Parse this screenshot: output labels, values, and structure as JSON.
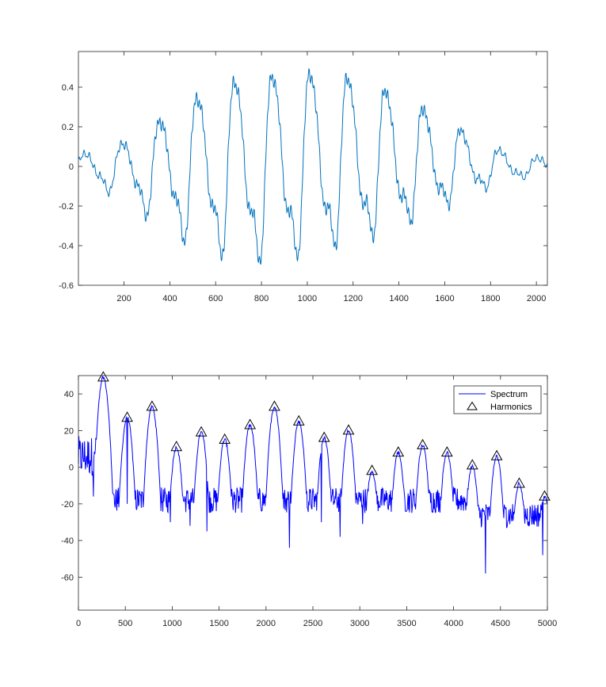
{
  "chart_data": [
    {
      "type": "line",
      "title": "",
      "xlabel": "",
      "ylabel": "",
      "xlim": [
        1,
        2048
      ],
      "ylim": [
        -0.6,
        0.58
      ],
      "xticks": [
        200,
        400,
        600,
        800,
        1000,
        1200,
        1400,
        1600,
        1800,
        2000
      ],
      "yticks": [
        -0.6,
        -0.4,
        -0.2,
        0,
        0.2,
        0.4
      ],
      "ytick_labels": [
        "-0.6",
        "-0.4",
        "-0.2",
        "0",
        "0.2",
        "0.4"
      ],
      "grid": false,
      "color": "#0072BD",
      "series": [
        {
          "samples": 2048,
          "pitch_period": 165,
          "first_pulse_x": 155,
          "peak_amplitudes": [
            0.1,
            0.23,
            0.38,
            0.5,
            0.54,
            0.57,
            0.56,
            0.49,
            0.38,
            0.25,
            0.11,
            0.05
          ],
          "trough_amplitudes": [
            -0.17,
            -0.33,
            -0.49,
            -0.57,
            -0.6,
            -0.56,
            -0.49,
            -0.43,
            -0.33,
            -0.22,
            -0.12,
            -0.06
          ]
        }
      ]
    },
    {
      "type": "line",
      "title": "",
      "xlabel": "",
      "ylabel": "",
      "xlim": [
        0,
        5000
      ],
      "ylim": [
        -78,
        50
      ],
      "xticks": [
        0,
        500,
        1000,
        1500,
        2000,
        2500,
        3000,
        3500,
        4000,
        4500,
        5000
      ],
      "yticks": [
        -60,
        -40,
        -20,
        0,
        20,
        40
      ],
      "grid": false,
      "legend_position": "top-right",
      "series": [
        {
          "name": "Spectrum",
          "color": "#0000FF",
          "noise_floor_db": -18,
          "deep_dips": [
            [
              160,
              -16
            ],
            [
              520,
              -20
            ],
            [
              980,
              -30
            ],
            [
              1190,
              -32
            ],
            [
              1370,
              -35
            ],
            [
              2250,
              -44
            ],
            [
              2590,
              -30
            ],
            [
              2790,
              -38
            ],
            [
              3030,
              -31
            ],
            [
              4340,
              -58
            ],
            [
              4950,
              -48
            ],
            [
              4560,
              -22
            ]
          ]
        },
        {
          "name": "Harmonics",
          "marker": "triangle",
          "color": "#000000",
          "x": [
            265,
            520,
            785,
            1045,
            1310,
            1560,
            1830,
            2090,
            2350,
            2620,
            2880,
            3130,
            3410,
            3670,
            3930,
            4200,
            4460,
            4700,
            4970
          ],
          "y": [
            49,
            27,
            33,
            11,
            19,
            15,
            23,
            33,
            25,
            16,
            20,
            -2,
            8,
            12,
            8,
            1,
            6,
            -9,
            -16
          ]
        }
      ],
      "legend": [
        "Spectrum",
        "Harmonics"
      ]
    }
  ]
}
